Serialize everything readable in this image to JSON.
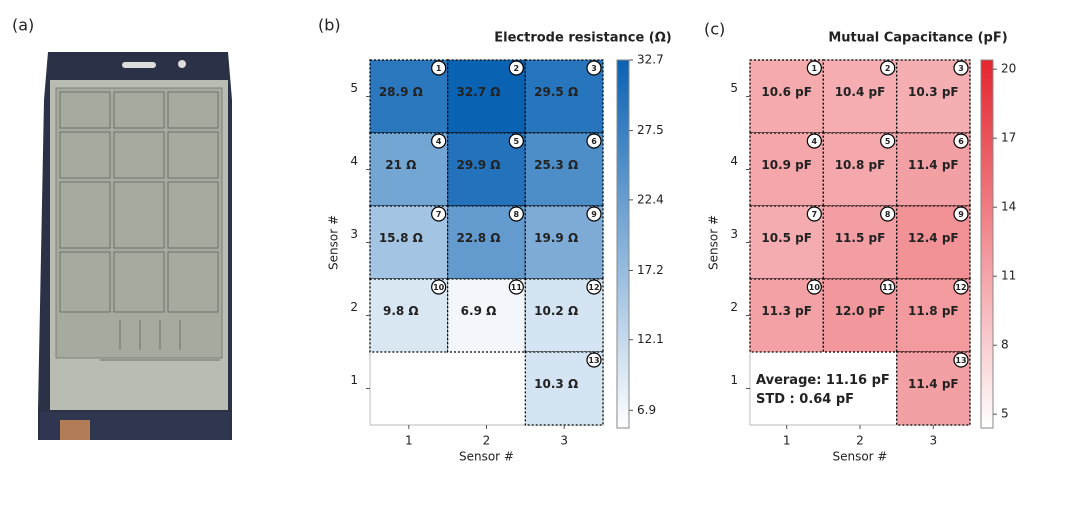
{
  "panel_labels": [
    "(a)",
    "(b)",
    "(c)"
  ],
  "chart_data": [
    {
      "type": "heatmap",
      "title": "Electrode resistance (Ω)",
      "x_label": "Sensor  #",
      "y_label": "Sensor  #",
      "xlim": [
        0.5,
        3.5
      ],
      "ylim": [
        0.5,
        5.5
      ],
      "xticks": [
        1,
        2,
        3
      ],
      "yticks": [
        1,
        2,
        3,
        4,
        5
      ],
      "clim": [
        5.6,
        32.7
      ],
      "cticks": [
        6.9,
        12.1,
        17.2,
        22.4,
        27.5,
        32.7
      ],
      "colors": [
        "#ffffff",
        "#0a62b3"
      ],
      "cells": [
        {
          "sensor": 1,
          "x": 1,
          "y": 5,
          "value": 28.9,
          "label": "28.9 Ω"
        },
        {
          "sensor": 2,
          "x": 2,
          "y": 5,
          "value": 32.7,
          "label": "32.7 Ω"
        },
        {
          "sensor": 3,
          "x": 3,
          "y": 5,
          "value": 29.5,
          "label": "29.5 Ω"
        },
        {
          "sensor": 4,
          "x": 1,
          "y": 4,
          "value": 21,
          "label": "21 Ω"
        },
        {
          "sensor": 5,
          "x": 2,
          "y": 4,
          "value": 29.9,
          "label": "29.9 Ω"
        },
        {
          "sensor": 6,
          "x": 3,
          "y": 4,
          "value": 25.3,
          "label": "25.3 Ω"
        },
        {
          "sensor": 7,
          "x": 1,
          "y": 3,
          "value": 15.8,
          "label": "15.8 Ω"
        },
        {
          "sensor": 8,
          "x": 2,
          "y": 3,
          "value": 22.8,
          "label": "22.8 Ω"
        },
        {
          "sensor": 9,
          "x": 3,
          "y": 3,
          "value": 19.9,
          "label": "19.9 Ω"
        },
        {
          "sensor": 10,
          "x": 1,
          "y": 2,
          "value": 9.8,
          "label": "9.8 Ω"
        },
        {
          "sensor": 11,
          "x": 2,
          "y": 2,
          "value": 6.9,
          "label": "6.9 Ω"
        },
        {
          "sensor": 12,
          "x": 3,
          "y": 2,
          "value": 10.2,
          "label": "10.2 Ω"
        },
        {
          "sensor": 13,
          "x": 3,
          "y": 1,
          "value": 10.3,
          "label": "10.3 Ω"
        }
      ]
    },
    {
      "type": "heatmap",
      "title": "Mutual Capacitance (pF)",
      "x_label": "Sensor  #",
      "y_label": "Sensor  #",
      "xlim": [
        0.5,
        3.5
      ],
      "ylim": [
        0.5,
        5.5
      ],
      "xticks": [
        1,
        2,
        3
      ],
      "yticks": [
        1,
        2,
        3,
        4,
        5
      ],
      "clim": [
        4.4,
        20.4
      ],
      "cticks": [
        5,
        8,
        11,
        14,
        17,
        20
      ],
      "colors": [
        "#ffffff",
        "#e4252f"
      ],
      "annotation": [
        "Average: 11.16  pF",
        "STD : 0.64  pF"
      ],
      "cells": [
        {
          "sensor": 1,
          "x": 1,
          "y": 5,
          "value": 10.6,
          "label": "10.6 pF"
        },
        {
          "sensor": 2,
          "x": 2,
          "y": 5,
          "value": 10.4,
          "label": "10.4 pF"
        },
        {
          "sensor": 3,
          "x": 3,
          "y": 5,
          "value": 10.3,
          "label": "10.3 pF"
        },
        {
          "sensor": 4,
          "x": 1,
          "y": 4,
          "value": 10.9,
          "label": "10.9 pF"
        },
        {
          "sensor": 5,
          "x": 2,
          "y": 4,
          "value": 10.8,
          "label": "10.8 pF"
        },
        {
          "sensor": 6,
          "x": 3,
          "y": 4,
          "value": 11.4,
          "label": "11.4 pF"
        },
        {
          "sensor": 7,
          "x": 1,
          "y": 3,
          "value": 10.5,
          "label": "10.5 pF"
        },
        {
          "sensor": 8,
          "x": 2,
          "y": 3,
          "value": 11.5,
          "label": "11.5 pF"
        },
        {
          "sensor": 9,
          "x": 3,
          "y": 3,
          "value": 12.4,
          "label": "12.4 pF"
        },
        {
          "sensor": 10,
          "x": 1,
          "y": 2,
          "value": 11.3,
          "label": "11.3 pF"
        },
        {
          "sensor": 11,
          "x": 2,
          "y": 2,
          "value": 12.0,
          "label": "12.0 pF"
        },
        {
          "sensor": 12,
          "x": 3,
          "y": 2,
          "value": 11.8,
          "label": "11.8 pF"
        },
        {
          "sensor": 13,
          "x": 3,
          "y": 1,
          "value": 11.4,
          "label": "11.4 pF"
        }
      ]
    }
  ]
}
